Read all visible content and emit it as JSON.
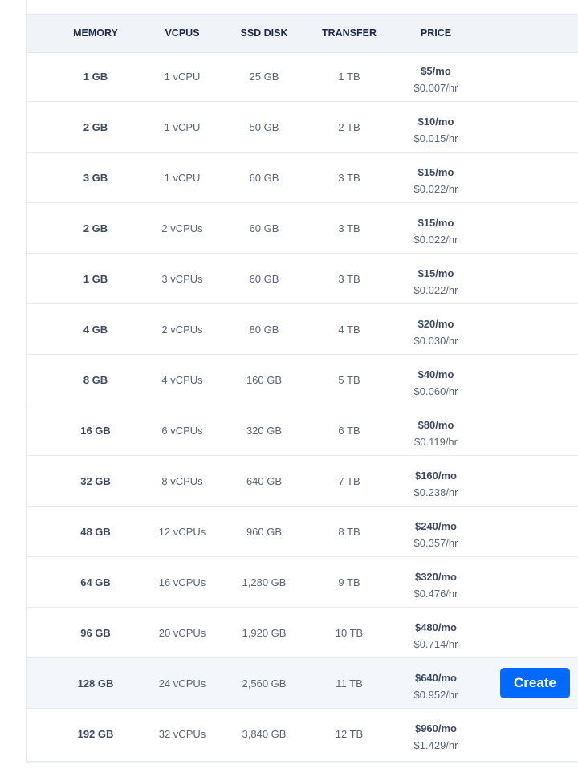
{
  "headers": [
    "MEMORY",
    "VCPUS",
    "SSD DISK",
    "TRANSFER",
    "PRICE"
  ],
  "create_label": "Create",
  "selected_row": 12,
  "accent": "#0069ff",
  "rows": [
    [
      "1 GB",
      "1 vCPU",
      "25 GB",
      "1 TB",
      "$5/mo",
      "$0.007/hr"
    ],
    [
      "2 GB",
      "1 vCPU",
      "50 GB",
      "2 TB",
      "$10/mo",
      "$0.015/hr"
    ],
    [
      "3 GB",
      "1 vCPU",
      "60 GB",
      "3 TB",
      "$15/mo",
      "$0.022/hr"
    ],
    [
      "2 GB",
      "2 vCPUs",
      "60 GB",
      "3 TB",
      "$15/mo",
      "$0.022/hr"
    ],
    [
      "1 GB",
      "3 vCPUs",
      "60 GB",
      "3 TB",
      "$15/mo",
      "$0.022/hr"
    ],
    [
      "4 GB",
      "2 vCPUs",
      "80 GB",
      "4 TB",
      "$20/mo",
      "$0.030/hr"
    ],
    [
      "8 GB",
      "4 vCPUs",
      "160 GB",
      "5 TB",
      "$40/mo",
      "$0.060/hr"
    ],
    [
      "16 GB",
      "6 vCPUs",
      "320 GB",
      "6 TB",
      "$80/mo",
      "$0.119/hr"
    ],
    [
      "32 GB",
      "8 vCPUs",
      "640 GB",
      "7 TB",
      "$160/mo",
      "$0.238/hr"
    ],
    [
      "48 GB",
      "12 vCPUs",
      "960 GB",
      "8 TB",
      "$240/mo",
      "$0.357/hr"
    ],
    [
      "64 GB",
      "16 vCPUs",
      "1,280 GB",
      "9 TB",
      "$320/mo",
      "$0.476/hr"
    ],
    [
      "96 GB",
      "20 vCPUs",
      "1,920 GB",
      "10 TB",
      "$480/mo",
      "$0.714/hr"
    ],
    [
      "128 GB",
      "24 vCPUs",
      "2,560 GB",
      "11 TB",
      "$640/mo",
      "$0.952/hr"
    ],
    [
      "192 GB",
      "32 vCPUs",
      "3,840 GB",
      "12 TB",
      "$960/mo",
      "$1.429/hr"
    ]
  ]
}
